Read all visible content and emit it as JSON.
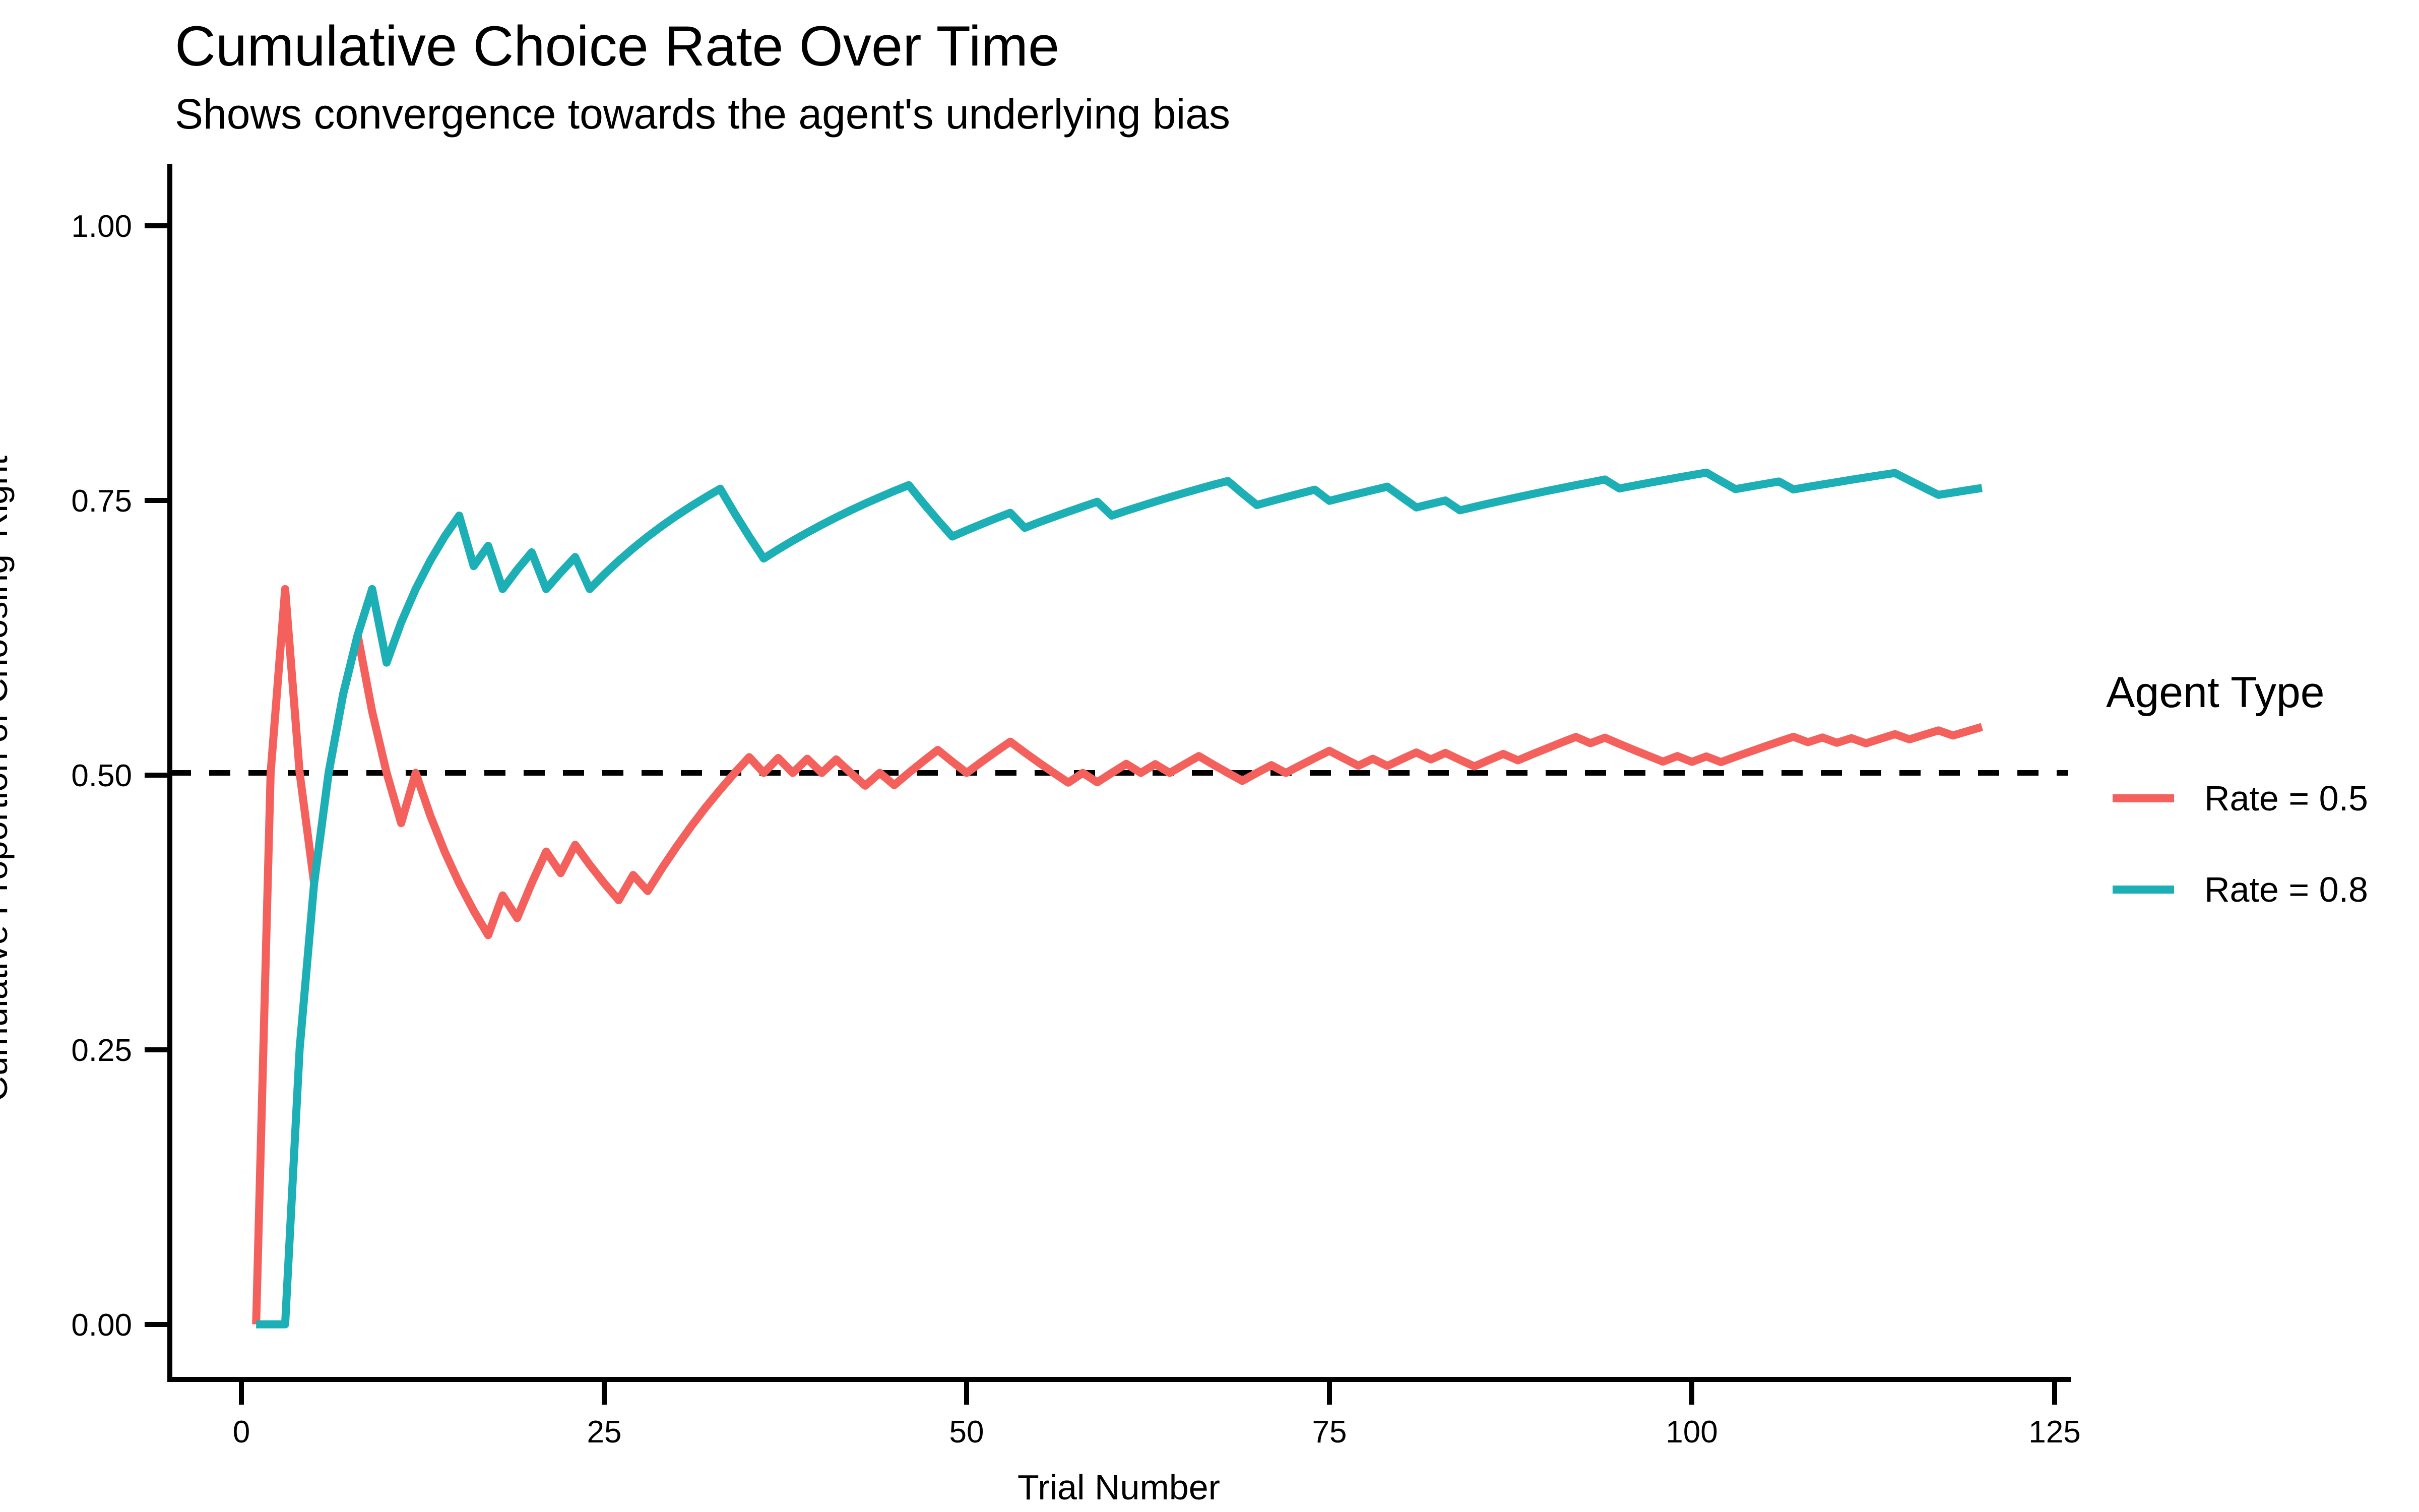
{
  "chart_data": {
    "type": "line",
    "title": "Cumulative Choice Rate Over Time",
    "subtitle": "Shows convergence towards the agent's underlying bias",
    "xlabel": "Trial Number",
    "ylabel": "Cumulative Proportion of Choosing 'Right'",
    "x_tick_labels": [
      "0",
      "25",
      "50",
      "75",
      "100",
      "125"
    ],
    "x_ticks": [
      0,
      25,
      50,
      75,
      100,
      125
    ],
    "y_tick_labels": [
      "0.00",
      "0.25",
      "0.50",
      "0.75",
      "1.00"
    ],
    "y_ticks": [
      0,
      0.25,
      0.5,
      0.75,
      1
    ],
    "xlim": [
      -4.95,
      125.95
    ],
    "ylim": [
      -0.05,
      1.05
    ],
    "grid": false,
    "background": "#ffffff",
    "axis_color": "#000000",
    "reference_line": {
      "y": 0.5,
      "style": "dashed",
      "color": "#000000"
    },
    "legend": {
      "title": "Agent Type",
      "position": "right"
    },
    "x_start": 1,
    "x_step": 1,
    "series": [
      {
        "name": "Rate = 0.5",
        "color": "#F4615C",
        "values": [
          0,
          0.5,
          0.6667,
          0.5,
          0.4,
          0.5,
          0.5714,
          0.625,
          0.5556,
          0.5,
          0.4545,
          0.5,
          0.4615,
          0.4286,
          0.4,
          0.375,
          0.3529,
          0.3889,
          0.3684,
          0.4,
          0.4286,
          0.4091,
          0.4348,
          0.4167,
          0.4,
          0.3846,
          0.4074,
          0.3929,
          0.4138,
          0.4333,
          0.4516,
          0.4688,
          0.4848,
          0.5,
          0.5143,
          0.5,
          0.5135,
          0.5,
          0.5128,
          0.5,
          0.5122,
          0.5,
          0.4884,
          0.5,
          0.4889,
          0.5,
          0.5106,
          0.5208,
          0.5102,
          0.5,
          0.5098,
          0.5192,
          0.5283,
          0.5185,
          0.5091,
          0.5,
          0.4912,
          0.5,
          0.4915,
          0.5,
          0.5082,
          0.5,
          0.5079,
          0.5,
          0.5077,
          0.5152,
          0.5075,
          0.5,
          0.4928,
          0.5,
          0.507,
          0.5,
          0.5068,
          0.5135,
          0.52,
          0.5132,
          0.5065,
          0.5128,
          0.5063,
          0.5125,
          0.5185,
          0.5122,
          0.5181,
          0.5119,
          0.5059,
          0.5116,
          0.5172,
          0.5114,
          0.5169,
          0.5222,
          0.5275,
          0.5326,
          0.5269,
          0.5319,
          0.5263,
          0.5208,
          0.5155,
          0.5102,
          0.5152,
          0.51,
          0.5149,
          0.5098,
          0.5146,
          0.5192,
          0.5238,
          0.5283,
          0.5327,
          0.5278,
          0.5321,
          0.5273,
          0.5315,
          0.5268,
          0.531,
          0.5351,
          0.5304,
          0.5345,
          0.5385,
          0.5339,
          0.5378,
          0.5417
        ]
      },
      {
        "name": "Rate = 0.8",
        "color": "#1CAFB5",
        "values": [
          0,
          0,
          0,
          0.25,
          0.4,
          0.5,
          0.5714,
          0.625,
          0.6667,
          0.6,
          0.6364,
          0.6667,
          0.6923,
          0.7143,
          0.7333,
          0.6875,
          0.7059,
          0.6667,
          0.6842,
          0.7,
          0.6667,
          0.6818,
          0.6957,
          0.6667,
          0.68,
          0.6923,
          0.7037,
          0.7143,
          0.7241,
          0.7333,
          0.7419,
          0.75,
          0.7576,
          0.7353,
          0.7143,
          0.6944,
          0.7027,
          0.7105,
          0.7179,
          0.725,
          0.7317,
          0.7381,
          0.7442,
          0.75,
          0.7556,
          0.7609,
          0.7447,
          0.7292,
          0.7143,
          0.72,
          0.7255,
          0.7308,
          0.7358,
          0.7222,
          0.7273,
          0.7321,
          0.7368,
          0.7414,
          0.7458,
          0.7333,
          0.7377,
          0.7419,
          0.746,
          0.75,
          0.7538,
          0.7576,
          0.7612,
          0.7647,
          0.7536,
          0.7429,
          0.7465,
          0.75,
          0.7534,
          0.7568,
          0.7467,
          0.75,
          0.7532,
          0.7564,
          0.7595,
          0.75,
          0.7407,
          0.7439,
          0.747,
          0.7381,
          0.7412,
          0.7442,
          0.7471,
          0.75,
          0.7528,
          0.7556,
          0.7582,
          0.7609,
          0.7634,
          0.766,
          0.7579,
          0.7604,
          0.7629,
          0.7653,
          0.7677,
          0.77,
          0.7723,
          0.7647,
          0.7573,
          0.7596,
          0.7619,
          0.7642,
          0.757,
          0.7593,
          0.7615,
          0.7636,
          0.7658,
          0.7679,
          0.7699,
          0.7719,
          0.7652,
          0.7586,
          0.7521,
          0.7542,
          0.7563,
          0.7583
        ]
      }
    ]
  }
}
